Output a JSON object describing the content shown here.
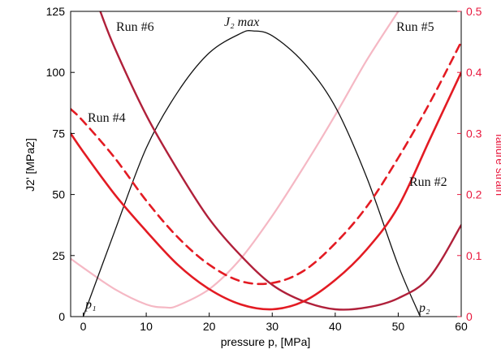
{
  "chart_data": {
    "type": "line",
    "xlabel": "pressure p, [MPa]",
    "ylabel": "J2' [MPa2]",
    "y2label": "failure strain",
    "xlim": [
      -2,
      60
    ],
    "ylim": [
      0,
      125
    ],
    "y2lim": [
      0,
      0.5
    ],
    "x_ticks": [
      "0",
      "10",
      "20",
      "30",
      "40",
      "50",
      "60"
    ],
    "y_ticks": [
      "0",
      "25",
      "50",
      "75",
      "100",
      "125"
    ],
    "y2_ticks": [
      "0",
      "0.1",
      "0.2",
      "0.3",
      "0.4",
      "0.5"
    ],
    "grid": false,
    "colors": {
      "j2": "#111111",
      "run6": "#b0203a",
      "run4": "#e31b23",
      "run4_dashed": "#e31b23",
      "run2": "#e31b23",
      "run5": "#f5b8c4",
      "right_axis": "#e8193e"
    },
    "series": [
      {
        "key": "j2",
        "axis": "left",
        "style": "solid",
        "x": [
          0,
          5,
          10,
          15,
          20,
          25,
          27,
          30,
          35,
          40,
          45,
          50,
          53.5
        ],
        "y": [
          0,
          35,
          69,
          92,
          108,
          116,
          117,
          115,
          104,
          86,
          57,
          21,
          0
        ]
      },
      {
        "key": "run6",
        "axis": "right",
        "style": "solid",
        "x": [
          2.7,
          5,
          10,
          15,
          20,
          25,
          30,
          35,
          40,
          45,
          50,
          55,
          60
        ],
        "y": [
          0.5,
          0.44,
          0.33,
          0.24,
          0.16,
          0.1,
          0.052,
          0.025,
          0.012,
          0.015,
          0.03,
          0.065,
          0.15
        ]
      },
      {
        "key": "run4_dashed",
        "axis": "right",
        "style": "dashed",
        "x": [
          -2,
          0,
          5,
          10,
          15,
          20,
          25,
          30,
          35,
          40,
          45,
          50,
          55,
          60
        ],
        "y": [
          0.34,
          0.32,
          0.26,
          0.19,
          0.13,
          0.085,
          0.058,
          0.055,
          0.075,
          0.12,
          0.18,
          0.26,
          0.35,
          0.45
        ]
      },
      {
        "key": "run4",
        "axis": "right",
        "style": "solid",
        "x": [
          -2,
          0,
          5,
          10,
          15,
          20,
          25,
          30,
          35,
          40,
          45,
          50,
          55,
          60
        ],
        "y": [
          0.3,
          0.27,
          0.2,
          0.14,
          0.085,
          0.045,
          0.02,
          0.012,
          0.025,
          0.06,
          0.11,
          0.18,
          0.29,
          0.4
        ]
      },
      {
        "key": "run5",
        "axis": "right",
        "style": "solid",
        "x": [
          -2,
          0,
          5,
          10,
          13,
          15,
          20,
          25,
          30,
          35,
          40,
          45,
          50
        ],
        "y": [
          0.095,
          0.08,
          0.045,
          0.02,
          0.015,
          0.018,
          0.045,
          0.095,
          0.165,
          0.245,
          0.33,
          0.42,
          0.5
        ]
      }
    ],
    "annotations": {
      "run6": "Run #6",
      "run4": "Run #4",
      "run5": "Run #5",
      "run2": "Run #2",
      "j2max": "J₂ max",
      "p1": "p₁",
      "p2": "p₂"
    }
  }
}
